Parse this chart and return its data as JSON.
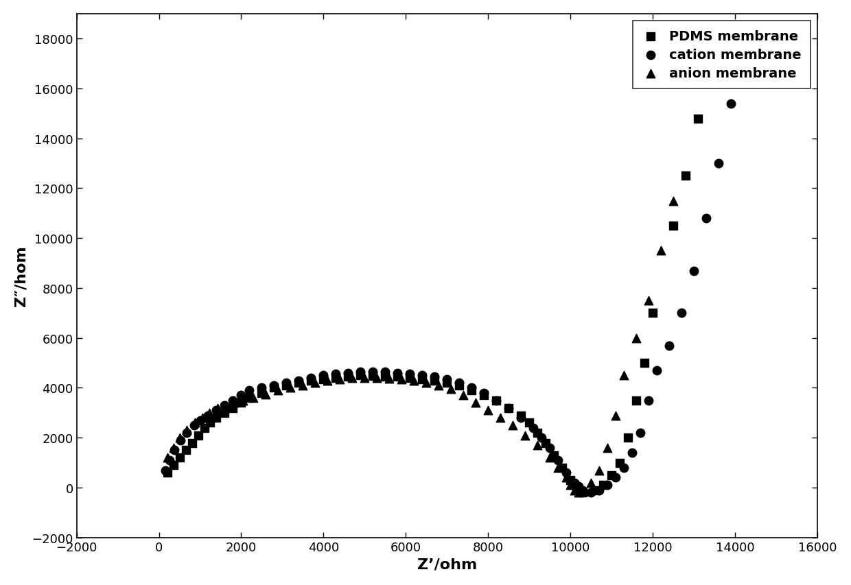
{
  "title": "",
  "xlabel": "Z'/ohm",
  "ylabel": "Z\"/hom",
  "xlim": [
    -2000,
    16000
  ],
  "ylim": [
    -2000,
    19000
  ],
  "xticks": [
    -2000,
    0,
    2000,
    4000,
    6000,
    8000,
    10000,
    12000,
    14000,
    16000
  ],
  "yticks": [
    -2000,
    0,
    2000,
    4000,
    6000,
    8000,
    10000,
    12000,
    14000,
    16000,
    18000
  ],
  "legend_labels": [
    "PDMS membrane",
    "cation membrane",
    "anion membrane"
  ],
  "marker_styles": [
    "s",
    "o",
    "^"
  ],
  "marker_color": "#000000",
  "marker_size": 9,
  "background_color": "#ffffff",
  "legend_fontsize": 14,
  "axis_fontsize": 16,
  "tick_fontsize": 13,
  "pdms_x": [
    200,
    350,
    500,
    650,
    800,
    950,
    1100,
    1250,
    1400,
    1600,
    1800,
    2000,
    2200,
    2500,
    2800,
    3100,
    3400,
    3700,
    4000,
    4300,
    4600,
    4900,
    5200,
    5500,
    5800,
    6100,
    6400,
    6700,
    7000,
    7300,
    7600,
    7900,
    8200,
    8500,
    8800,
    9000,
    9200,
    9400,
    9600,
    9800,
    10000,
    10100,
    10200,
    10300,
    10600,
    10800,
    11000,
    11200,
    11400,
    11600,
    11800,
    12000,
    12500,
    12800,
    13100
  ],
  "pdms_y": [
    600,
    900,
    1200,
    1500,
    1800,
    2100,
    2400,
    2600,
    2800,
    3000,
    3200,
    3400,
    3600,
    3800,
    4000,
    4100,
    4200,
    4300,
    4350,
    4400,
    4450,
    4500,
    4480,
    4460,
    4450,
    4400,
    4350,
    4300,
    4200,
    4100,
    3900,
    3700,
    3500,
    3200,
    2900,
    2600,
    2200,
    1800,
    1300,
    800,
    300,
    100,
    -100,
    -200,
    -100,
    100,
    500,
    1000,
    2000,
    3500,
    5000,
    7000,
    10500,
    12500,
    14800
  ],
  "cation_x": [
    150,
    250,
    380,
    520,
    680,
    850,
    1000,
    1200,
    1400,
    1600,
    1800,
    2000,
    2200,
    2500,
    2800,
    3100,
    3400,
    3700,
    4000,
    4300,
    4600,
    4900,
    5200,
    5500,
    5800,
    6100,
    6400,
    6700,
    7000,
    7300,
    7600,
    7900,
    8200,
    8500,
    8800,
    9100,
    9300,
    9500,
    9700,
    9900,
    10100,
    10200,
    10300,
    10500,
    10700,
    10900,
    11100,
    11300,
    11500,
    11700,
    11900,
    12100,
    12400,
    12700,
    13000,
    13300,
    13600,
    13900
  ],
  "cation_y": [
    700,
    1100,
    1500,
    1900,
    2200,
    2500,
    2700,
    2900,
    3100,
    3300,
    3500,
    3700,
    3900,
    4000,
    4100,
    4200,
    4300,
    4400,
    4500,
    4550,
    4600,
    4650,
    4650,
    4650,
    4600,
    4550,
    4500,
    4450,
    4350,
    4200,
    4000,
    3800,
    3500,
    3200,
    2800,
    2400,
    2000,
    1600,
    1100,
    600,
    200,
    50,
    -100,
    -200,
    -100,
    100,
    400,
    800,
    1400,
    2200,
    3500,
    4700,
    5700,
    7000,
    8700,
    10800,
    13000,
    15400
  ],
  "anion_x": [
    200,
    350,
    500,
    680,
    870,
    1050,
    1230,
    1420,
    1620,
    1830,
    2050,
    2300,
    2600,
    2900,
    3200,
    3500,
    3800,
    4100,
    4400,
    4700,
    5000,
    5300,
    5600,
    5900,
    6200,
    6500,
    6800,
    7100,
    7400,
    7700,
    8000,
    8300,
    8600,
    8900,
    9200,
    9500,
    9700,
    9900,
    10000,
    10100,
    10200,
    10300,
    10500,
    10700,
    10900,
    11100,
    11300,
    11600,
    11900,
    12200,
    12500
  ],
  "anion_y": [
    1200,
    1600,
    2000,
    2300,
    2600,
    2800,
    3000,
    3200,
    3300,
    3400,
    3500,
    3600,
    3750,
    3900,
    4000,
    4100,
    4200,
    4300,
    4350,
    4400,
    4400,
    4400,
    4380,
    4350,
    4300,
    4200,
    4100,
    3950,
    3700,
    3400,
    3100,
    2800,
    2500,
    2100,
    1700,
    1200,
    800,
    400,
    100,
    -100,
    -200,
    -100,
    200,
    700,
    1600,
    2900,
    4500,
    6000,
    7500,
    9500,
    11500
  ]
}
